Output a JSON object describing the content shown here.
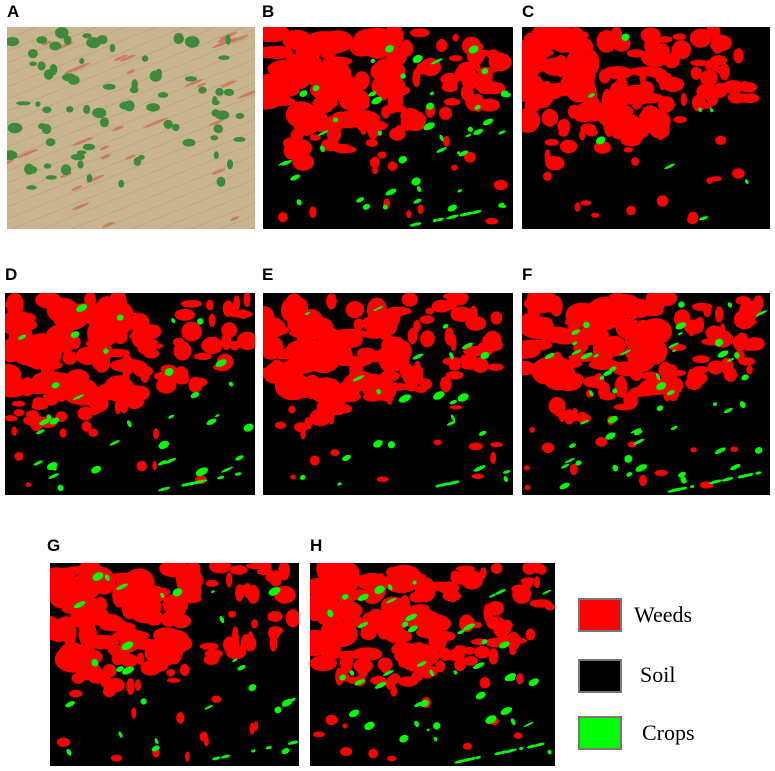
{
  "panels": [
    {
      "id": "A",
      "label": "A",
      "kind": "photo"
    },
    {
      "id": "B",
      "label": "B",
      "kind": "map",
      "seed": 11,
      "crop_density": 1.0
    },
    {
      "id": "C",
      "label": "C",
      "kind": "map",
      "seed": 23,
      "crop_density": 0.15
    },
    {
      "id": "D",
      "label": "D",
      "kind": "map",
      "seed": 37,
      "crop_density": 0.8
    },
    {
      "id": "E",
      "label": "E",
      "kind": "map",
      "seed": 41,
      "crop_density": 0.5
    },
    {
      "id": "F",
      "label": "F",
      "kind": "map",
      "seed": 53,
      "crop_density": 1.2
    },
    {
      "id": "G",
      "label": "G",
      "kind": "map",
      "seed": 67,
      "crop_density": 0.6
    },
    {
      "id": "H",
      "label": "H",
      "kind": "map",
      "seed": 79,
      "crop_density": 1.0
    }
  ],
  "legend": [
    {
      "key": "weeds",
      "label": "Weeds",
      "color": "#ff0000"
    },
    {
      "key": "soil",
      "label": "Soil",
      "color": "#000000"
    },
    {
      "key": "crops",
      "label": "Crops",
      "color": "#00ff00"
    }
  ],
  "colors": {
    "weeds": "#ff0000",
    "soil": "#000000",
    "crops": "#00ff00",
    "photo_soil": "#c8b48e",
    "photo_crop": "#3f8a3a",
    "photo_weed": "#c9705a"
  }
}
